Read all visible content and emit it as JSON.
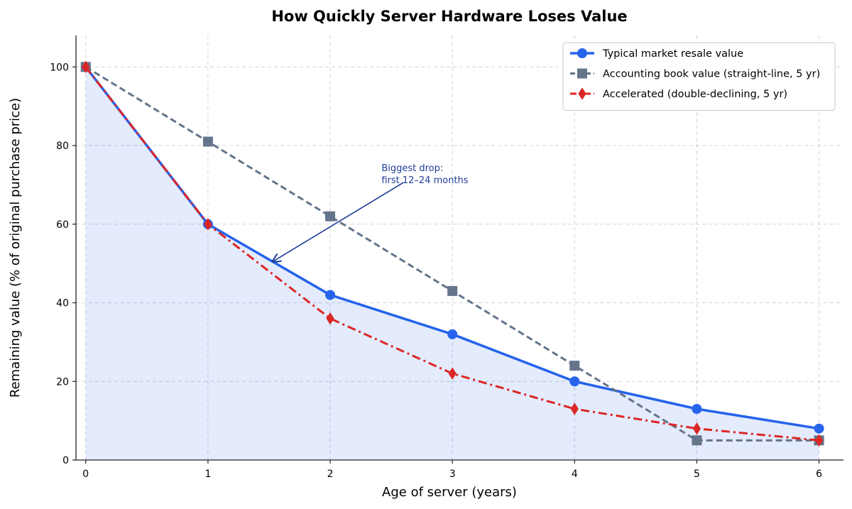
{
  "chart_data": {
    "type": "line",
    "title": "How Quickly Server Hardware Loses Value",
    "xlabel": "Age of server (years)",
    "ylabel": "Remaining value (% of original purchase price)",
    "x": [
      0,
      1,
      2,
      3,
      4,
      5,
      6
    ],
    "xlim": [
      -0.08,
      6.2
    ],
    "ylim": [
      0,
      108
    ],
    "xticks": [
      0,
      1,
      2,
      3,
      4,
      5,
      6
    ],
    "yticks": [
      0,
      20,
      40,
      60,
      80,
      100
    ],
    "grid": true,
    "legend_position": "top-right",
    "series": [
      {
        "name": "Typical market resale value",
        "values": [
          100,
          60,
          42,
          32,
          20,
          13,
          8
        ],
        "color": "#2563eb",
        "line_style": "solid",
        "marker": "circle",
        "area_fill": true
      },
      {
        "name": "Accounting book value (straight-line, 5 yr)",
        "values": [
          100,
          81,
          62,
          43,
          24,
          5,
          5
        ],
        "color": "#64748b",
        "line_style": "dashed",
        "marker": "square"
      },
      {
        "name": "Accelerated (double-declining, 5 yr)",
        "values": [
          100,
          60,
          36,
          22,
          13,
          8,
          5
        ],
        "color": "#dc2626",
        "line_style": "dash-dot",
        "marker": "diamond"
      }
    ],
    "annotations": [
      {
        "text_lines": [
          "Biggest drop:",
          "first 12–24 months"
        ],
        "text_anchor": [
          2.42,
          73.5
        ],
        "arrow_tail": [
          2.6,
          70.6
        ],
        "arrow_head": [
          1.53,
          50.5
        ],
        "color": "#1f3d99"
      }
    ]
  }
}
